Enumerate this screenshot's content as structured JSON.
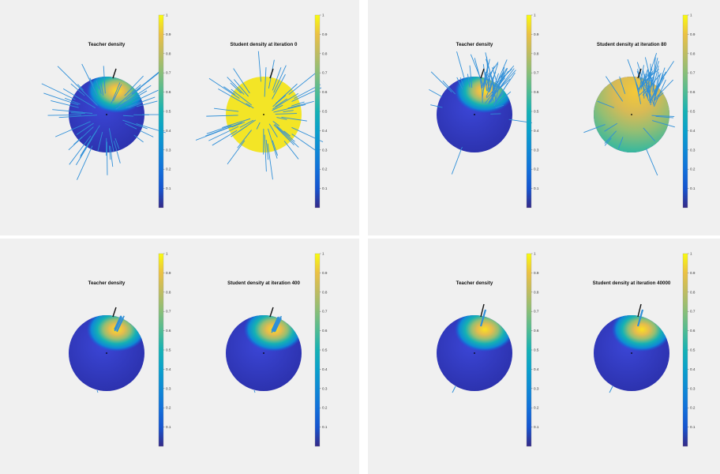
{
  "colors": {
    "background": "#f0f0f0",
    "separator": "#ffffff",
    "vector": "#2f8fd8",
    "reference_vector": "#111111",
    "colormap": "parula"
  },
  "chart_data": [
    {
      "type": "heatmap",
      "panel": "top-left",
      "subplots": [
        {
          "title": "Teacher density",
          "field": "teacher",
          "vectors": "many-long"
        },
        {
          "title": "Student density at iteration 0",
          "field": "uniform",
          "vectors": "many-long"
        }
      ],
      "colorbar": {
        "ticks": [
          "0.1",
          "0.2",
          "0.3",
          "0.4",
          "0.5",
          "0.6",
          "0.7",
          "0.8",
          "0.9",
          "1"
        ],
        "range": [
          0,
          1
        ]
      }
    },
    {
      "type": "heatmap",
      "panel": "top-right",
      "subplots": [
        {
          "title": "Teacher density",
          "field": "teacher",
          "vectors": "clustered"
        },
        {
          "title": "Student density at iteration 80",
          "field": "partial",
          "vectors": "clustered"
        }
      ],
      "colorbar": {
        "ticks": [
          "0.1",
          "0.2",
          "0.3",
          "0.4",
          "0.5",
          "0.6",
          "0.7",
          "0.8",
          "0.9",
          "1"
        ],
        "range": [
          0,
          1
        ]
      }
    },
    {
      "type": "heatmap",
      "panel": "bottom-left",
      "subplots": [
        {
          "title": "Teacher density",
          "field": "teacher",
          "vectors": "aligned"
        },
        {
          "title": "Student density at iteration 400",
          "field": "teacher",
          "vectors": "aligned"
        }
      ],
      "colorbar": {
        "ticks": [
          "0.1",
          "0.2",
          "0.3",
          "0.4",
          "0.5",
          "0.6",
          "0.7",
          "0.8",
          "0.9",
          "1"
        ],
        "range": [
          0,
          1
        ]
      }
    },
    {
      "type": "heatmap",
      "panel": "bottom-right",
      "subplots": [
        {
          "title": "Teacher density",
          "field": "teacher",
          "vectors": "converged"
        },
        {
          "title": "Student density at iteration 40000",
          "field": "teacher",
          "vectors": "converged"
        }
      ],
      "colorbar": {
        "ticks": [
          "0.1",
          "0.2",
          "0.3",
          "0.4",
          "0.5",
          "0.6",
          "0.7",
          "0.8",
          "0.9",
          "1"
        ],
        "range": [
          0,
          1
        ]
      }
    }
  ]
}
